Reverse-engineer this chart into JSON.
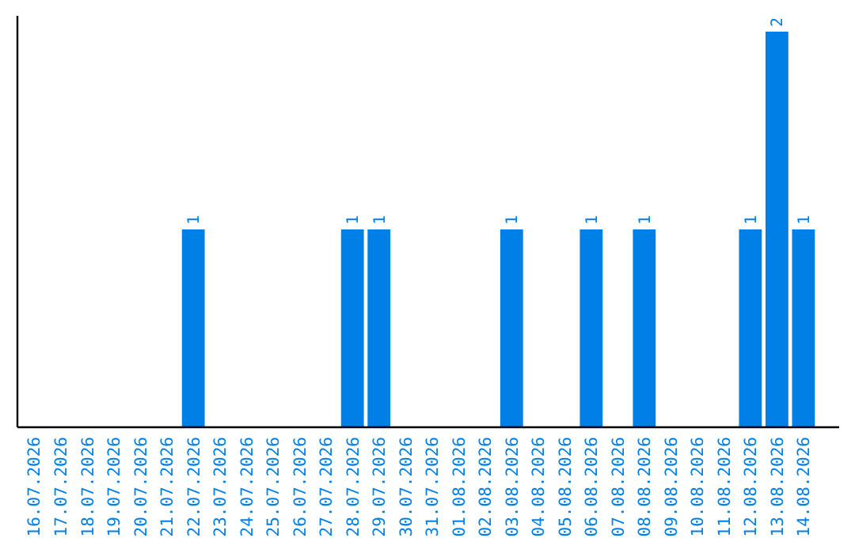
{
  "chart_data": {
    "type": "bar",
    "categories": [
      "16.07.2026",
      "17.07.2026",
      "18.07.2026",
      "19.07.2026",
      "20.07.2026",
      "21.07.2026",
      "22.07.2026",
      "23.07.2026",
      "24.07.2026",
      "25.07.2026",
      "26.07.2026",
      "27.07.2026",
      "28.07.2026",
      "29.07.2026",
      "30.07.2026",
      "31.07.2026",
      "01.08.2026",
      "02.08.2026",
      "03.08.2026",
      "04.08.2026",
      "05.08.2026",
      "06.08.2026",
      "07.08.2026",
      "08.08.2026",
      "09.08.2026",
      "10.08.2026",
      "11.08.2026",
      "12.08.2026",
      "13.08.2026",
      "14.08.2026"
    ],
    "values": [
      0,
      0,
      0,
      0,
      0,
      0,
      1,
      0,
      0,
      0,
      0,
      0,
      1,
      1,
      0,
      0,
      0,
      0,
      1,
      0,
      0,
      1,
      0,
      1,
      0,
      0,
      0,
      1,
      2,
      1
    ],
    "value_labels": [
      null,
      null,
      null,
      null,
      null,
      null,
      "1",
      null,
      null,
      null,
      null,
      null,
      "1",
      "1",
      null,
      null,
      null,
      null,
      "1",
      null,
      null,
      "1",
      null,
      "1",
      null,
      null,
      null,
      "1",
      "2",
      "1"
    ],
    "color": "#0080e6",
    "ylim": [
      0,
      2
    ],
    "tick_labels": "x"
  }
}
